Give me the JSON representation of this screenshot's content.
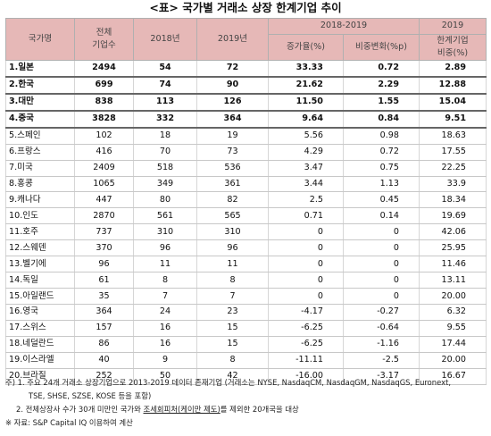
{
  "title": "<표> 국가별 거래소 상장 한계기업 추이",
  "header": {
    "country": "국가명",
    "total_l1": "전체",
    "total_l2": "기업수",
    "y2018": "2018년",
    "y2019": "2019년",
    "period": "2018-2019",
    "growth": "증가율(%)",
    "share_change": "비중변화(%p)",
    "y2019b": "2019",
    "marginal_l1": "한계기업",
    "marginal_l2": "비중(%)"
  },
  "rows": [
    {
      "name": "1.일본",
      "total": "2494",
      "y2018": "54",
      "y2019": "72",
      "growth": "33.33",
      "change": "0.72",
      "share": "2.89",
      "bold": true
    },
    {
      "name": "2.한국",
      "total": "699",
      "y2018": "74",
      "y2019": "90",
      "growth": "21.62",
      "change": "2.29",
      "share": "12.88",
      "bold": true
    },
    {
      "name": "3.대만",
      "total": "838",
      "y2018": "113",
      "y2019": "126",
      "growth": "11.50",
      "change": "1.55",
      "share": "15.04",
      "bold": true
    },
    {
      "name": "4.중국",
      "total": "3828",
      "y2018": "332",
      "y2019": "364",
      "growth": "9.64",
      "change": "0.84",
      "share": "9.51",
      "bold": true
    },
    {
      "name": "5.스페인",
      "total": "102",
      "y2018": "18",
      "y2019": "19",
      "growth": "5.56",
      "change": "0.98",
      "share": "18.63",
      "bold": false
    },
    {
      "name": "6.프랑스",
      "total": "416",
      "y2018": "70",
      "y2019": "73",
      "growth": "4.29",
      "change": "0.72",
      "share": "17.55",
      "bold": false
    },
    {
      "name": "7.미국",
      "total": "2409",
      "y2018": "518",
      "y2019": "536",
      "growth": "3.47",
      "change": "0.75",
      "share": "22.25",
      "bold": false
    },
    {
      "name": "8.홍콩",
      "total": "1065",
      "y2018": "349",
      "y2019": "361",
      "growth": "3.44",
      "change": "1.13",
      "share": "33.9",
      "bold": false
    },
    {
      "name": "9.캐나다",
      "total": "447",
      "y2018": "80",
      "y2019": "82",
      "growth": "2.5",
      "change": "0.45",
      "share": "18.34",
      "bold": false
    },
    {
      "name": "10.인도",
      "total": "2870",
      "y2018": "561",
      "y2019": "565",
      "growth": "0.71",
      "change": "0.14",
      "share": "19.69",
      "bold": false
    },
    {
      "name": "11.호주",
      "total": "737",
      "y2018": "310",
      "y2019": "310",
      "growth": "0",
      "change": "0",
      "share": "42.06",
      "bold": false
    },
    {
      "name": "12.스웨덴",
      "total": "370",
      "y2018": "96",
      "y2019": "96",
      "growth": "0",
      "change": "0",
      "share": "25.95",
      "bold": false
    },
    {
      "name": "13.벨기에",
      "total": "96",
      "y2018": "11",
      "y2019": "11",
      "growth": "0",
      "change": "0",
      "share": "11.46",
      "bold": false
    },
    {
      "name": "14.독일",
      "total": "61",
      "y2018": "8",
      "y2019": "8",
      "growth": "0",
      "change": "0",
      "share": "13.11",
      "bold": false
    },
    {
      "name": "15.아일랜드",
      "total": "35",
      "y2018": "7",
      "y2019": "7",
      "growth": "0",
      "change": "0",
      "share": "20.00",
      "bold": false
    },
    {
      "name": "16.영국",
      "total": "364",
      "y2018": "24",
      "y2019": "23",
      "growth": "-4.17",
      "change": "-0.27",
      "share": "6.32",
      "bold": false
    },
    {
      "name": "17.스위스",
      "total": "157",
      "y2018": "16",
      "y2019": "15",
      "growth": "-6.25",
      "change": "-0.64",
      "share": "9.55",
      "bold": false
    },
    {
      "name": "18.네덜란드",
      "total": "86",
      "y2018": "16",
      "y2019": "15",
      "growth": "-6.25",
      "change": "-1.16",
      "share": "17.44",
      "bold": false
    },
    {
      "name": "19.이스라엘",
      "total": "40",
      "y2018": "9",
      "y2019": "8",
      "growth": "-11.11",
      "change": "-2.5",
      "share": "20.00",
      "bold": false
    },
    {
      "name": "20.브라질",
      "total": "252",
      "y2018": "50",
      "y2019": "42",
      "growth": "-16.00",
      "change": "-3.17",
      "share": "16.67",
      "bold": false
    }
  ],
  "notes": {
    "n1a": "주) 1. 주요 24개 거래소 상장기업으로 2013-2019 데이터 존재기업 (거래소는 NYSE, NasdaqCM, NasdaqGM, NasdaqGS, Euronext,",
    "n1b": "TSE, SHSE, SZSE, KOSE 등을 포함)",
    "n2_pre": "2. 전체상장사 수가 30개 미만인 국가와 ",
    "n2_ul": "조세회피처(케이만 제도)",
    "n2_post": "를 제외한 20개국을 대상",
    "source": "※ 자료: S&P Capital IQ 이용하여 계산"
  }
}
